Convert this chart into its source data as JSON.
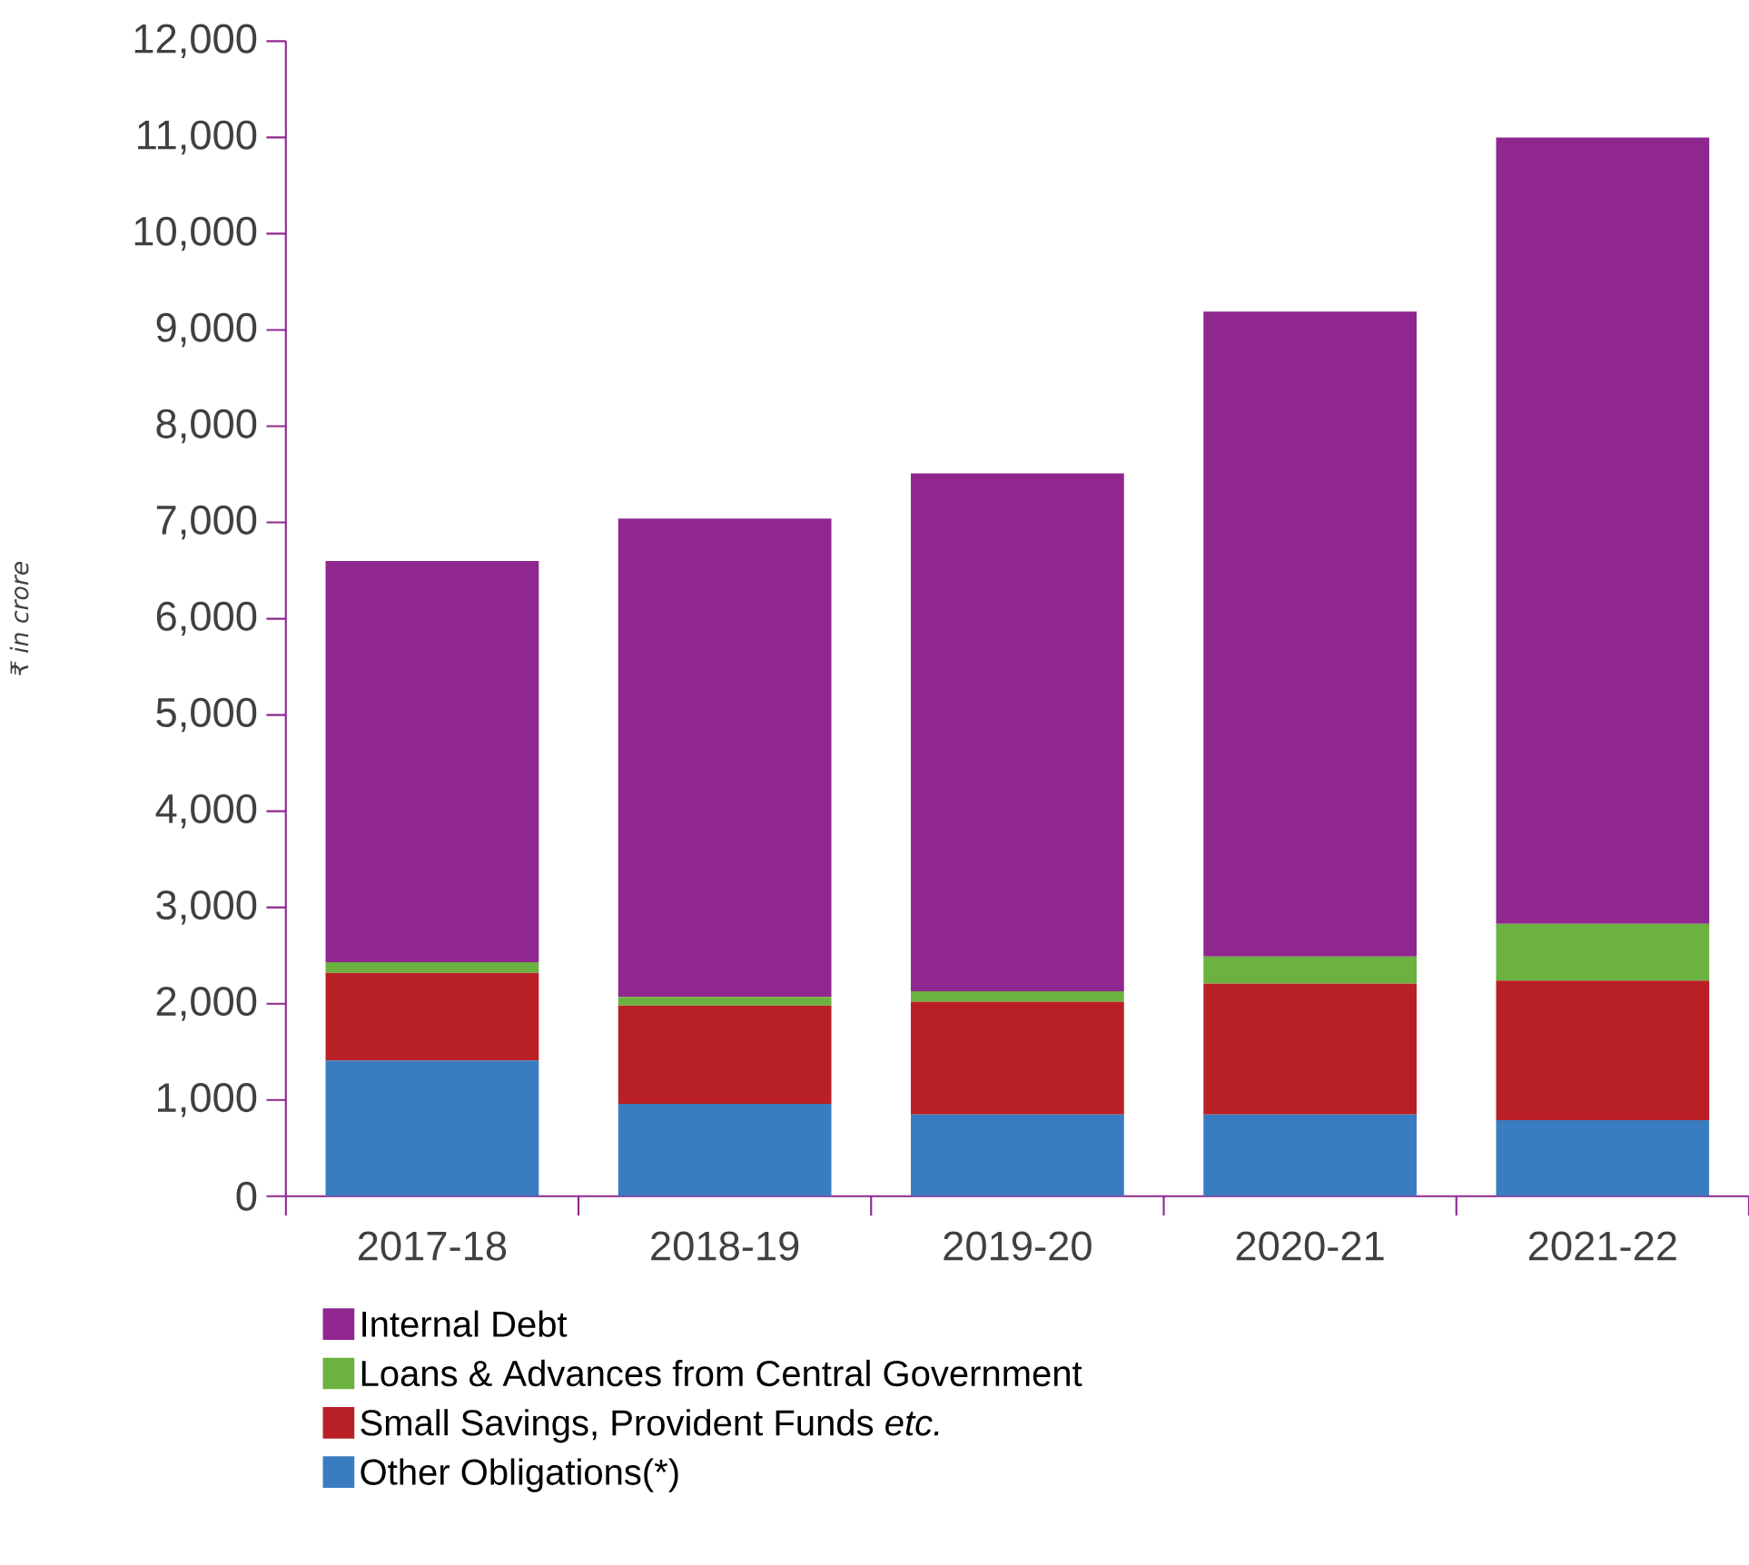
{
  "chart_data": {
    "type": "bar",
    "stacked": true,
    "ylabel": "*₹ in crore*",
    "categories": [
      "2017-18",
      "2018-19",
      "2019-20",
      "2020-21",
      "2021-22"
    ],
    "series": [
      {
        "name": "Other Obligations(*)",
        "color": "#3a7cc0",
        "values": [
          1410,
          960,
          850,
          850,
          790
        ]
      },
      {
        "name": "Small Savings, Provident Funds *etc.*",
        "color": "#b92025",
        "values": [
          910,
          1020,
          1170,
          1360,
          1450
        ]
      },
      {
        "name": "Loans & Advances from Central Government",
        "color": "#6bb240",
        "values": [
          110,
          90,
          110,
          280,
          590
        ]
      },
      {
        "name": "Internal Debt",
        "color": "#8f278f",
        "values": [
          4170,
          4970,
          5380,
          6700,
          8170
        ]
      }
    ],
    "ylim": [
      0,
      12000
    ],
    "yticks": [
      0,
      {
        "value": 1000,
        "label": "1,000"
      },
      {
        "value": 2000,
        "label": "2,000"
      },
      {
        "value": 3000,
        "label": "3,000"
      },
      {
        "value": 4000,
        "label": "4,000"
      },
      {
        "value": 5000,
        "label": "5,000"
      },
      {
        "value": 6000,
        "label": "6,000"
      },
      {
        "value": 7000,
        "label": "7,000"
      },
      {
        "value": 8000,
        "label": "8,000"
      },
      {
        "value": 9000,
        "label": "9,000"
      },
      {
        "value": 10000,
        "label": "10,000"
      },
      {
        "value": 11000,
        "label": "11,000"
      },
      {
        "value": 12000,
        "label": "12,000"
      }
    ],
    "legend": "bottom",
    "grid": false
  }
}
